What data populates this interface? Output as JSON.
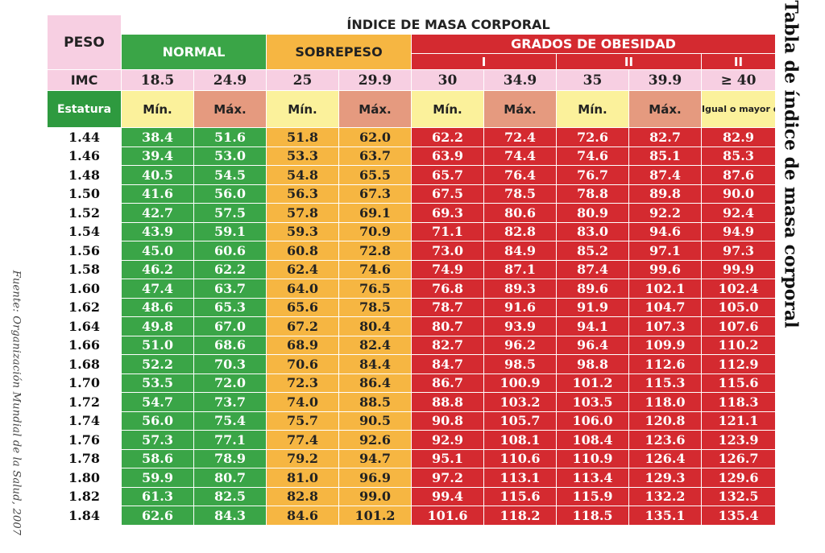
{
  "title": "ÍNDICE DE MASA CORPORAL",
  "side_title": "Tabla de índice de masa corporal",
  "source_note": "Fuente: Organización Mundial de la Salud, 2007",
  "header": {
    "peso": "PESO",
    "normal": "NORMAL",
    "sobrepeso": "SOBREPESO",
    "grados": "GRADOS DE OBESIDAD",
    "grade_I": "I",
    "grade_II": "II",
    "grade_III": "II",
    "imc_label": "IMC",
    "imc_values": [
      "18.5",
      "24.9",
      "25",
      "29.9",
      "30",
      "34.9",
      "35",
      "39.9",
      "≥ 40"
    ],
    "estatura": "Estatura",
    "sub_labels": [
      "Mín.",
      "Máx.",
      "Mín.",
      "Máx.",
      "Mín.",
      "Máx.",
      "Mín.",
      "Máx.",
      "Igual o mayor de:"
    ]
  },
  "colors": {
    "pink": "#f7cfe2",
    "normal_green": "#3aa547",
    "sobrepeso_orange": "#f6b642",
    "obesidad_red": "#d42a30",
    "min_yellow": "#fbf19b",
    "max_salmon": "#e59a7f"
  },
  "rows": [
    {
      "h": "1.44",
      "v": [
        "38.4",
        "51.6",
        "51.8",
        "62.0",
        "62.2",
        "72.4",
        "72.6",
        "82.7",
        "82.9"
      ]
    },
    {
      "h": "1.46",
      "v": [
        "39.4",
        "53.0",
        "53.3",
        "63.7",
        "63.9",
        "74.4",
        "74.6",
        "85.1",
        "85.3"
      ]
    },
    {
      "h": "1.48",
      "v": [
        "40.5",
        "54.5",
        "54.8",
        "65.5",
        "65.7",
        "76.4",
        "76.7",
        "87.4",
        "87.6"
      ]
    },
    {
      "h": "1.50",
      "v": [
        "41.6",
        "56.0",
        "56.3",
        "67.3",
        "67.5",
        "78.5",
        "78.8",
        "89.8",
        "90.0"
      ]
    },
    {
      "h": "1.52",
      "v": [
        "42.7",
        "57.5",
        "57.8",
        "69.1",
        "69.3",
        "80.6",
        "80.9",
        "92.2",
        "92.4"
      ]
    },
    {
      "h": "1.54",
      "v": [
        "43.9",
        "59.1",
        "59.3",
        "70.9",
        "71.1",
        "82.8",
        "83.0",
        "94.6",
        "94.9"
      ]
    },
    {
      "h": "1.56",
      "v": [
        "45.0",
        "60.6",
        "60.8",
        "72.8",
        "73.0",
        "84.9",
        "85.2",
        "97.1",
        "97.3"
      ]
    },
    {
      "h": "1.58",
      "v": [
        "46.2",
        "62.2",
        "62.4",
        "74.6",
        "74.9",
        "87.1",
        "87.4",
        "99.6",
        "99.9"
      ]
    },
    {
      "h": "1.60",
      "v": [
        "47.4",
        "63.7",
        "64.0",
        "76.5",
        "76.8",
        "89.3",
        "89.6",
        "102.1",
        "102.4"
      ]
    },
    {
      "h": "1.62",
      "v": [
        "48.6",
        "65.3",
        "65.6",
        "78.5",
        "78.7",
        "91.6",
        "91.9",
        "104.7",
        "105.0"
      ]
    },
    {
      "h": "1.64",
      "v": [
        "49.8",
        "67.0",
        "67.2",
        "80.4",
        "80.7",
        "93.9",
        "94.1",
        "107.3",
        "107.6"
      ]
    },
    {
      "h": "1.66",
      "v": [
        "51.0",
        "68.6",
        "68.9",
        "82.4",
        "82.7",
        "96.2",
        "96.4",
        "109.9",
        "110.2"
      ]
    },
    {
      "h": "1.68",
      "v": [
        "52.2",
        "70.3",
        "70.6",
        "84.4",
        "84.7",
        "98.5",
        "98.8",
        "112.6",
        "112.9"
      ]
    },
    {
      "h": "1.70",
      "v": [
        "53.5",
        "72.0",
        "72.3",
        "86.4",
        "86.7",
        "100.9",
        "101.2",
        "115.3",
        "115.6"
      ]
    },
    {
      "h": "1.72",
      "v": [
        "54.7",
        "73.7",
        "74.0",
        "88.5",
        "88.8",
        "103.2",
        "103.5",
        "118.0",
        "118.3"
      ]
    },
    {
      "h": "1.74",
      "v": [
        "56.0",
        "75.4",
        "75.7",
        "90.5",
        "90.8",
        "105.7",
        "106.0",
        "120.8",
        "121.1"
      ]
    },
    {
      "h": "1.76",
      "v": [
        "57.3",
        "77.1",
        "77.4",
        "92.6",
        "92.9",
        "108.1",
        "108.4",
        "123.6",
        "123.9"
      ]
    },
    {
      "h": "1.78",
      "v": [
        "58.6",
        "78.9",
        "79.2",
        "94.7",
        "95.1",
        "110.6",
        "110.9",
        "126.4",
        "126.7"
      ]
    },
    {
      "h": "1.80",
      "v": [
        "59.9",
        "80.7",
        "81.0",
        "96.9",
        "97.2",
        "113.1",
        "113.4",
        "129.3",
        "129.6"
      ]
    },
    {
      "h": "1.82",
      "v": [
        "61.3",
        "82.5",
        "82.8",
        "99.0",
        "99.4",
        "115.6",
        "115.9",
        "132.2",
        "132.5"
      ]
    },
    {
      "h": "1.84",
      "v": [
        "62.6",
        "84.3",
        "84.6",
        "101.2",
        "101.6",
        "118.2",
        "118.5",
        "135.1",
        "135.4"
      ]
    }
  ]
}
